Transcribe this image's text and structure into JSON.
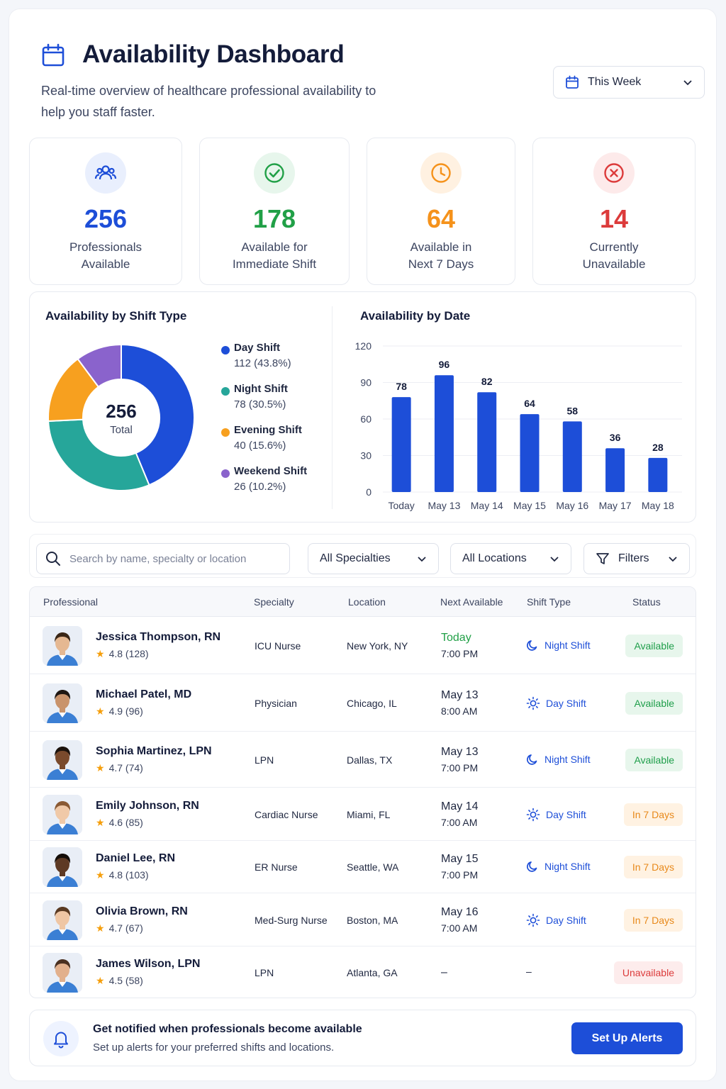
{
  "header": {
    "title": "Availability Dashboard",
    "subtitle": "Real-time overview of healthcare professional availability to help you staff faster.",
    "date_range": "This Week"
  },
  "stats": [
    {
      "value": "256",
      "label": "Professionals\nAvailable",
      "color": "#1d4ed8",
      "icon": "users-icon"
    },
    {
      "value": "178",
      "label": "Available for\nImmediate Shift",
      "color": "#21a047",
      "icon": "check-circle-icon"
    },
    {
      "value": "64",
      "label": "Available in\nNext 7 Days",
      "color": "#f5921b",
      "icon": "clock-icon"
    },
    {
      "value": "14",
      "label": "Currently\nUnavailable",
      "color": "#dc3b3b",
      "icon": "x-circle-icon"
    }
  ],
  "donut": {
    "title": "Availability by Shift Type",
    "total_value": "256",
    "total_label": "Total",
    "slices": [
      {
        "name": "Day Shift",
        "value": 112,
        "detail": "112 (43.8%)",
        "color": "#1d4ed8"
      },
      {
        "name": "Night Shift",
        "value": 78,
        "detail": "78 (30.5%)",
        "color": "#26a69a"
      },
      {
        "name": "Evening Shift",
        "value": 40,
        "detail": "40 (15.6%)",
        "color": "#f7a01f"
      },
      {
        "name": "Weekend Shift",
        "value": 26,
        "detail": "26 (10.2%)",
        "color": "#8a63cc"
      }
    ]
  },
  "chart_data": {
    "type": "bar",
    "title": "Availability by Date",
    "categories": [
      "Today",
      "May 13",
      "May 14",
      "May 15",
      "May 16",
      "May 17",
      "May 18"
    ],
    "values": [
      78,
      96,
      82,
      64,
      58,
      36,
      28
    ],
    "yticks": [
      0,
      30,
      60,
      90,
      120
    ],
    "ylim": [
      0,
      120
    ],
    "xlabel": "",
    "ylabel": "",
    "grid": true,
    "color": "#1d4ed8"
  },
  "filters": {
    "search_placeholder": "Search by name, specialty or location",
    "specialty": "All Specialties",
    "location": "All Locations",
    "more": "Filters"
  },
  "table": {
    "headers": [
      "Professional",
      "Specialty",
      "Location",
      "Next Available",
      "Shift Type",
      "Status"
    ],
    "rows": [
      {
        "name": "Jessica Thompson, RN",
        "rating": "4.8 (128)",
        "specialty": "ICU Nurse",
        "location": "New York, NY",
        "date": "Today",
        "time": "7:00 PM",
        "shift": "Night Shift",
        "shift_icon": "moon-icon",
        "status": "Available",
        "status_type": "available",
        "skin": "#e5b892",
        "hair": "#3a2616"
      },
      {
        "name": "Michael Patel, MD",
        "rating": "4.9 (96)",
        "specialty": "Physician",
        "location": "Chicago, IL",
        "date": "May 13",
        "time": "8:00 AM",
        "shift": "Day Shift",
        "shift_icon": "sun-icon",
        "status": "Available",
        "status_type": "available",
        "skin": "#c9936b",
        "hair": "#1f1712"
      },
      {
        "name": "Sophia Martinez, LPN",
        "rating": "4.7 (74)",
        "specialty": "LPN",
        "location": "Dallas, TX",
        "date": "May 13",
        "time": "7:00 PM",
        "shift": "Night Shift",
        "shift_icon": "moon-icon",
        "status": "Available",
        "status_type": "available",
        "skin": "#7a4a2c",
        "hair": "#1b120c"
      },
      {
        "name": "Emily Johnson, RN",
        "rating": "4.6 (85)",
        "specialty": "Cardiac Nurse",
        "location": "Miami, FL",
        "date": "May 14",
        "time": "7:00 AM",
        "shift": "Day Shift",
        "shift_icon": "sun-icon",
        "status": "In 7 Days",
        "status_type": "week",
        "skin": "#f0c9a8",
        "hair": "#8a5a34"
      },
      {
        "name": "Daniel Lee, RN",
        "rating": "4.8 (103)",
        "specialty": "ER Nurse",
        "location": "Seattle, WA",
        "date": "May 15",
        "time": "7:00 PM",
        "shift": "Night Shift",
        "shift_icon": "moon-icon",
        "status": "In 7 Days",
        "status_type": "week",
        "skin": "#5e3a24",
        "hair": "#140d08"
      },
      {
        "name": "Olivia Brown, RN",
        "rating": "4.7 (67)",
        "specialty": "Med-Surg Nurse",
        "location": "Boston, MA",
        "date": "May 16",
        "time": "7:00 AM",
        "shift": "Day Shift",
        "shift_icon": "sun-icon",
        "status": "In 7 Days",
        "status_type": "week",
        "skin": "#efc6a4",
        "hair": "#5a3a22"
      },
      {
        "name": "James Wilson, LPN",
        "rating": "4.5 (58)",
        "specialty": "LPN",
        "location": "Atlanta, GA",
        "date": "–",
        "time": "",
        "shift": "–",
        "shift_icon": "",
        "status": "Unavailable",
        "status_type": "unavailable",
        "skin": "#e2b08c",
        "hair": "#4a3020"
      }
    ]
  },
  "alert": {
    "title": "Get notified when professionals become available",
    "text": "Set up alerts for your preferred shifts and locations.",
    "button": "Set Up Alerts"
  }
}
